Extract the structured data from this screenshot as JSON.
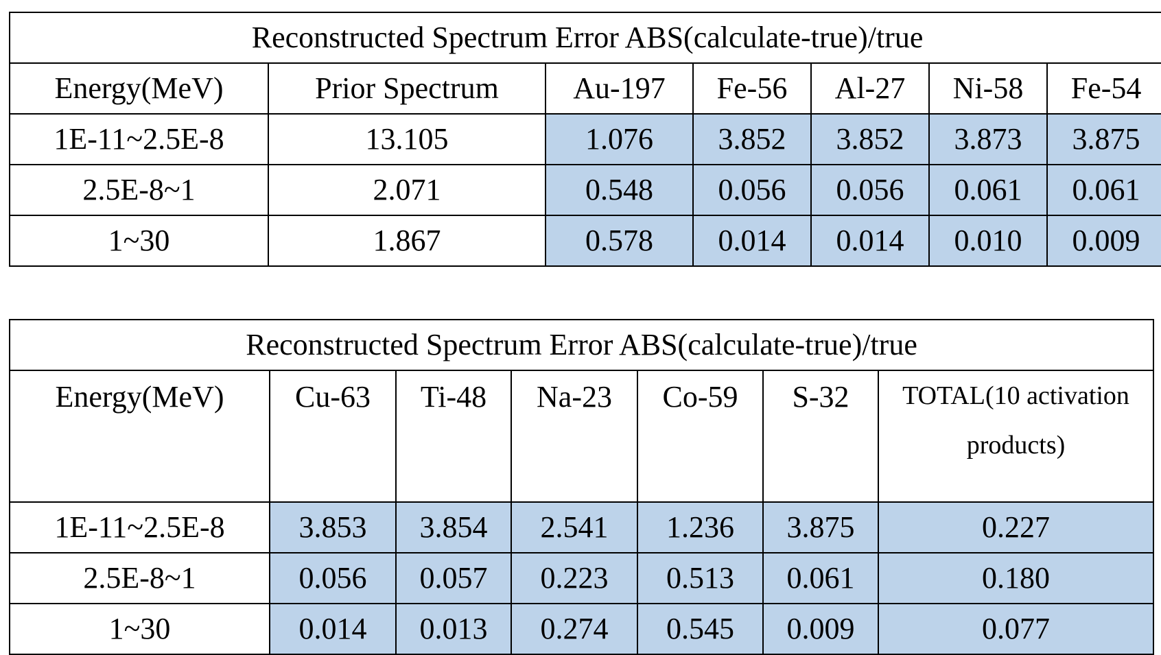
{
  "colors": {
    "highlight_cell": "#bdd3ea",
    "border": "#000000",
    "background": "#ffffff"
  },
  "table_a": {
    "caption": "Reconstructed Spectrum Error ABS(calculate-true)/true",
    "headers": [
      "Energy(MeV)",
      "Prior Spectrum",
      "Au-197",
      "Fe-56",
      "Al-27",
      "Ni-58",
      "Fe-54"
    ],
    "rows": [
      [
        "1E-11~2.5E-8",
        "13.105",
        "1.076",
        "3.852",
        "3.852",
        "3.873",
        "3.875"
      ],
      [
        "2.5E-8~1",
        "2.071",
        "0.548",
        "0.056",
        "0.056",
        "0.061",
        "0.061"
      ],
      [
        "1~30",
        "1.867",
        "0.578",
        "0.014",
        "0.014",
        "0.010",
        "0.009"
      ]
    ]
  },
  "table_b": {
    "caption": "Reconstructed Spectrum Error ABS(calculate-true)/true",
    "headers": [
      "Energy(MeV)",
      "Cu-63",
      "Ti-48",
      "Na-23",
      "Co-59",
      "S-32",
      "TOTAL(10 activation products)"
    ],
    "rows": [
      [
        "1E-11~2.5E-8",
        "3.853",
        "3.854",
        "2.541",
        "1.236",
        "3.875",
        "0.227"
      ],
      [
        "2.5E-8~1",
        "0.056",
        "0.057",
        "0.223",
        "0.513",
        "0.061",
        "0.180"
      ],
      [
        "1~30",
        "0.014",
        "0.013",
        "0.274",
        "0.545",
        "0.009",
        "0.077"
      ]
    ]
  }
}
